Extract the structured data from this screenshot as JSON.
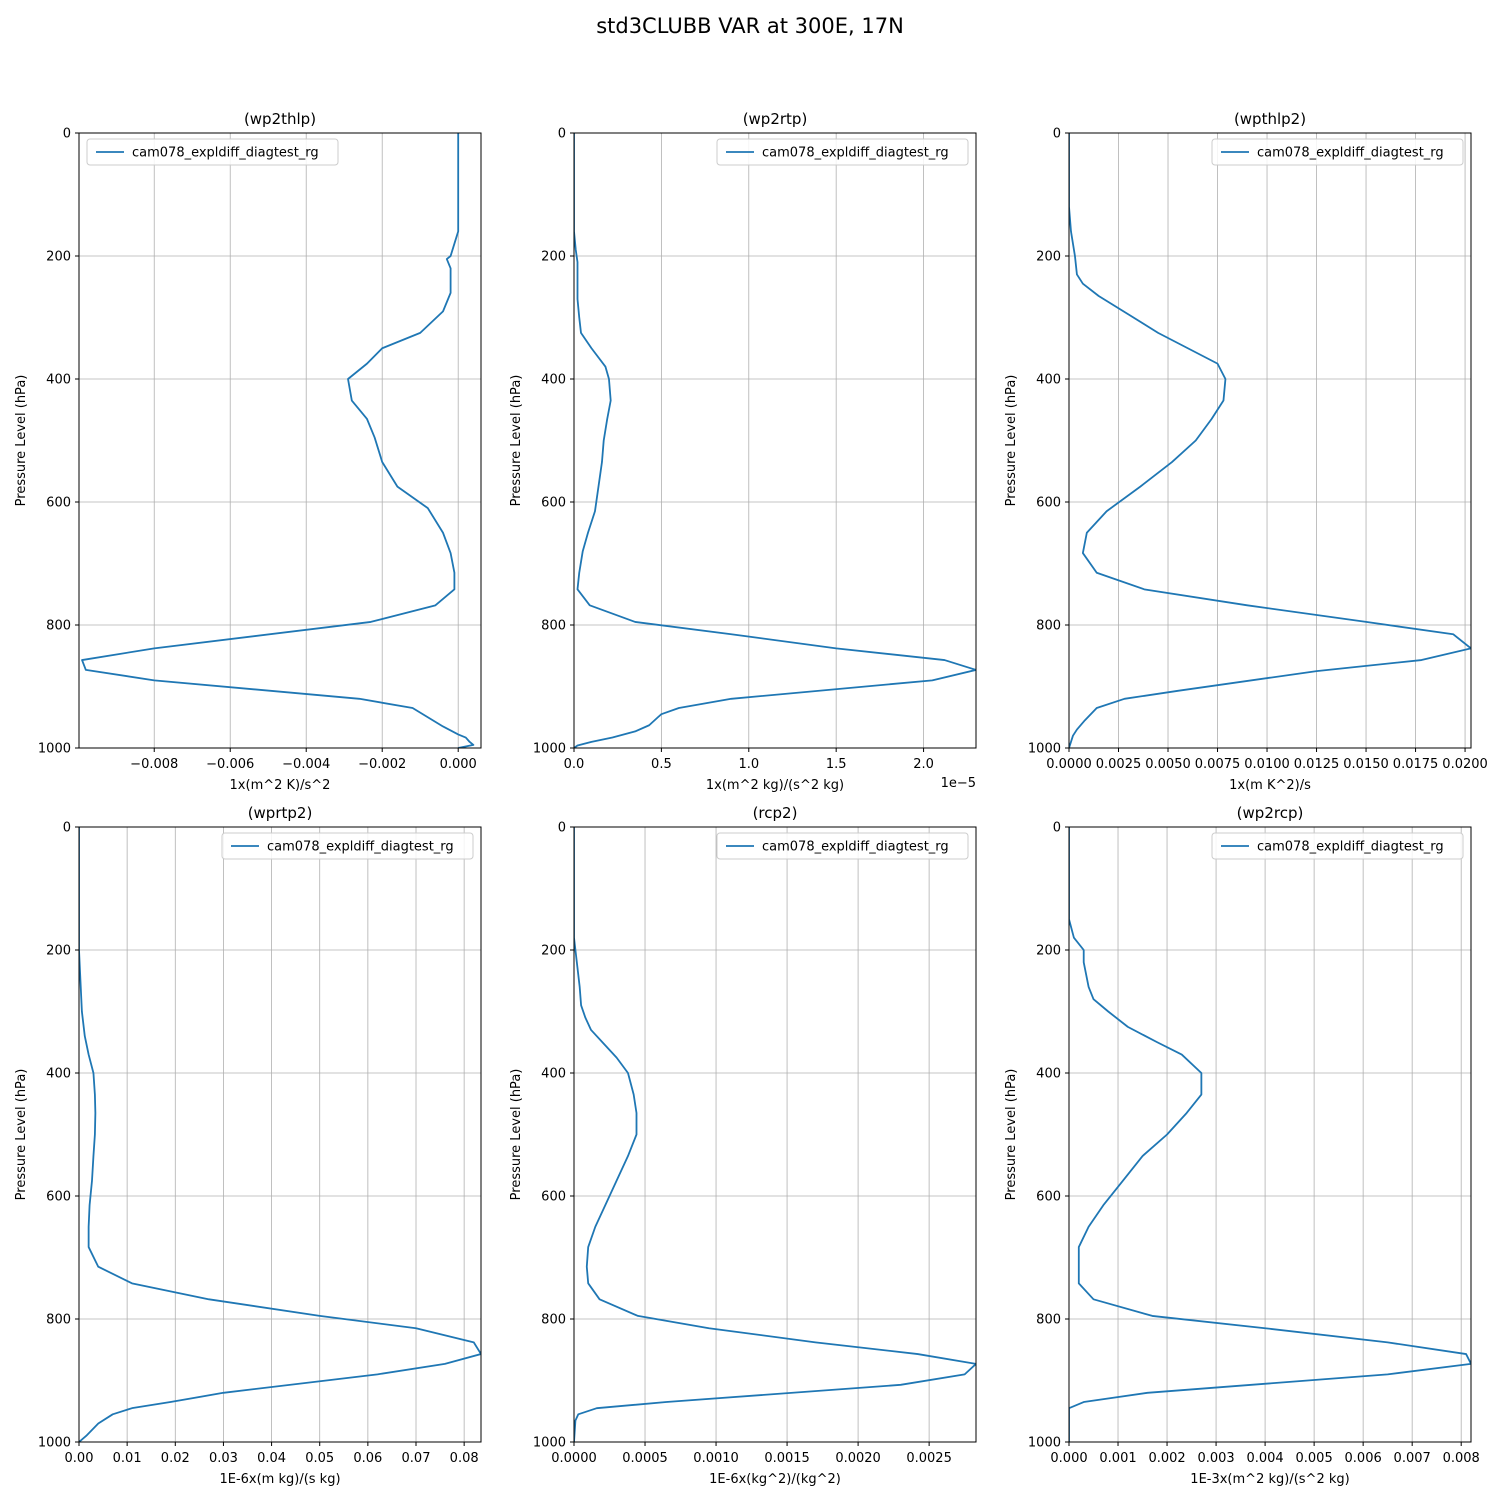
{
  "figure": {
    "title": "std3CLUBB VAR at 300E, 17N",
    "line_color": "#1f77b4",
    "grid_color": "#b0b0b0"
  },
  "chart_data": [
    {
      "type": "line",
      "title": "(wp2thlp)",
      "xlabel": "1x(m^2 K)/s^2",
      "ylabel": "Pressure Level (hPa)",
      "xlim": [
        -0.00998,
        0.0006
      ],
      "ylim": [
        1000,
        0
      ],
      "xticks": [
        -0.008,
        -0.006,
        -0.004,
        -0.002,
        0.0
      ],
      "xtick_labels": [
        "−0.008",
        "−0.006",
        "−0.004",
        "−0.002",
        "0.000"
      ],
      "yticks": [
        0,
        200,
        400,
        600,
        800,
        1000
      ],
      "ytick_labels": [
        "0",
        "200",
        "400",
        "600",
        "800",
        "1000"
      ],
      "offset_label": "",
      "legend": "upper left",
      "series": [
        {
          "name": "cam078_expldiff_diagtest_rg",
          "x": [
            0.0,
            0.0,
            0.0,
            0.0,
            0.0,
            -0.0001,
            -0.0002,
            -0.0003,
            -0.0002,
            -0.0002,
            -0.0004,
            -0.001,
            -0.002,
            -0.0024,
            -0.0029,
            -0.0028,
            -0.0024,
            -0.0022,
            -0.002,
            -0.0016,
            -0.0008,
            -0.0004,
            -0.0002,
            -0.0001,
            -0.0001,
            -0.0006,
            -0.0023,
            -0.008,
            -0.0099,
            -0.0098,
            -0.008,
            -0.0026,
            -0.0012,
            -0.0004,
            0.0,
            0.0002,
            0.0003,
            0.0004,
            0.0
          ],
          "y": [
            0,
            50,
            100,
            135,
            160,
            180,
            200,
            205,
            220,
            260,
            290,
            325,
            350,
            375,
            400,
            435,
            465,
            495,
            535,
            575,
            610,
            650,
            683,
            715,
            742,
            768,
            795,
            838,
            857,
            873,
            890,
            920,
            935,
            965,
            978,
            983,
            990,
            995,
            1000
          ]
        }
      ]
    },
    {
      "type": "line",
      "title": "(wp2rtp)",
      "xlabel": "1x(m^2 kg)/(s^2 kg)",
      "ylabel": "Pressure Level (hPa)",
      "xlim": [
        0,
        2.3
      ],
      "ylim": [
        1000,
        0
      ],
      "xticks": [
        0.0,
        0.5,
        1.0,
        1.5,
        2.0
      ],
      "xtick_labels": [
        "0.0",
        "0.5",
        "1.0",
        "1.5",
        "2.0"
      ],
      "yticks": [
        0,
        200,
        400,
        600,
        800,
        1000
      ],
      "ytick_labels": [
        "0",
        "200",
        "400",
        "600",
        "800",
        "1000"
      ],
      "offset_label": "1e−5",
      "legend": "upper right",
      "series": [
        {
          "name": "cam078_expldiff_diagtest_rg",
          "x": [
            0.0,
            0.0,
            0.0,
            0.01,
            0.02,
            0.02,
            0.02,
            0.03,
            0.04,
            0.1,
            0.18,
            0.2,
            0.21,
            0.19,
            0.17,
            0.16,
            0.14,
            0.12,
            0.08,
            0.05,
            0.03,
            0.02,
            0.09,
            0.35,
            0.9,
            1.5,
            2.12,
            2.3,
            2.05,
            0.9,
            0.6,
            0.5,
            0.48,
            0.43,
            0.35,
            0.22,
            0.1,
            0.02,
            0.0
          ],
          "y": [
            0,
            100,
            160,
            190,
            210,
            230,
            270,
            300,
            325,
            350,
            380,
            400,
            435,
            465,
            500,
            535,
            575,
            615,
            650,
            680,
            715,
            742,
            768,
            795,
            815,
            838,
            857,
            873,
            890,
            920,
            935,
            945,
            950,
            963,
            973,
            983,
            990,
            996,
            1000
          ]
        }
      ]
    },
    {
      "type": "line",
      "title": "(wpthlp2)",
      "xlabel": "1x(m K^2)/s",
      "ylabel": "Pressure Level (hPa)",
      "xlim": [
        0,
        0.0203
      ],
      "ylim": [
        1000,
        0
      ],
      "xticks": [
        0.0,
        0.0025,
        0.005,
        0.0075,
        0.01,
        0.0125,
        0.015,
        0.0175,
        0.02
      ],
      "xtick_labels": [
        "0.0000",
        "0.0025",
        "0.0050",
        "0.0075",
        "0.0100",
        "0.0125",
        "0.0150",
        "0.0175",
        "0.0200"
      ],
      "yticks": [
        0,
        200,
        400,
        600,
        800,
        1000
      ],
      "ytick_labels": [
        "0",
        "200",
        "400",
        "600",
        "800",
        "1000"
      ],
      "offset_label": "",
      "legend": "upper right",
      "series": [
        {
          "name": "cam078_expldiff_diagtest_rg",
          "x": [
            0.0,
            0.0,
            0.0001,
            0.0003,
            0.0004,
            0.0007,
            0.0015,
            0.003,
            0.0045,
            0.006,
            0.0075,
            0.0079,
            0.0078,
            0.0072,
            0.0064,
            0.0052,
            0.0036,
            0.0019,
            0.0009,
            0.0007,
            0.0014,
            0.0038,
            0.009,
            0.015,
            0.0194,
            0.0203,
            0.0178,
            0.0125,
            0.0055,
            0.0028,
            0.0014,
            0.0008,
            0.0004,
            0.0002,
            0.0001,
            0.0
          ],
          "y": [
            0,
            120,
            160,
            200,
            230,
            245,
            265,
            295,
            325,
            350,
            375,
            400,
            435,
            465,
            500,
            535,
            575,
            615,
            650,
            683,
            715,
            742,
            768,
            795,
            815,
            838,
            857,
            875,
            907,
            920,
            935,
            955,
            970,
            980,
            990,
            1000
          ]
        }
      ]
    },
    {
      "type": "line",
      "title": "(wprtp2)",
      "xlabel": "1E-6x(m kg)/(s kg)",
      "ylabel": "Pressure Level (hPa)",
      "xlim": [
        0,
        0.0835
      ],
      "ylim": [
        1000,
        0
      ],
      "xticks": [
        0.0,
        0.01,
        0.02,
        0.03,
        0.04,
        0.05,
        0.06,
        0.07,
        0.08
      ],
      "xtick_labels": [
        "0.00",
        "0.01",
        "0.02",
        "0.03",
        "0.04",
        "0.05",
        "0.06",
        "0.07",
        "0.08"
      ],
      "yticks": [
        0,
        200,
        400,
        600,
        800,
        1000
      ],
      "ytick_labels": [
        "0",
        "200",
        "400",
        "600",
        "800",
        "1000"
      ],
      "offset_label": "",
      "legend": "upper right",
      "series": [
        {
          "name": "cam078_expldiff_diagtest_rg",
          "x": [
            0.0,
            0.0,
            0.0003,
            0.0006,
            0.0012,
            0.002,
            0.003,
            0.0033,
            0.0034,
            0.0033,
            0.003,
            0.0027,
            0.0022,
            0.002,
            0.002,
            0.004,
            0.011,
            0.027,
            0.05,
            0.07,
            0.082,
            0.0835,
            0.076,
            0.062,
            0.03,
            0.019,
            0.011,
            0.007,
            0.004,
            0.0015,
            0.0
          ],
          "y": [
            0,
            200,
            250,
            300,
            340,
            370,
            400,
            435,
            465,
            500,
            535,
            575,
            615,
            650,
            683,
            715,
            742,
            768,
            795,
            815,
            838,
            857,
            873,
            890,
            920,
            935,
            945,
            955,
            970,
            990,
            1000
          ]
        }
      ]
    },
    {
      "type": "line",
      "title": "(rcp2)",
      "xlabel": "1E-6x(kg^2)/(kg^2)",
      "ylabel": "Pressure Level (hPa)",
      "xlim": [
        0,
        0.00283
      ],
      "ylim": [
        1000,
        0
      ],
      "xticks": [
        0.0,
        0.0005,
        0.001,
        0.0015,
        0.002,
        0.0025
      ],
      "xtick_labels": [
        "0.0000",
        "0.0005",
        "0.0010",
        "0.0015",
        "0.0020",
        "0.0025"
      ],
      "yticks": [
        0,
        200,
        400,
        600,
        800,
        1000
      ],
      "ytick_labels": [
        "0",
        "200",
        "400",
        "600",
        "800",
        "1000"
      ],
      "offset_label": "",
      "legend": "upper right",
      "series": [
        {
          "name": "cam078_expldiff_diagtest_rg",
          "x": [
            0.0,
            0.0,
            2e-05,
            4e-05,
            5e-05,
            8e-05,
            0.00012,
            0.0002,
            0.0003,
            0.00038,
            0.00042,
            0.00044,
            0.00044,
            0.00038,
            0.0003,
            0.00022,
            0.00015,
            0.0001,
            9e-05,
            0.0001,
            0.00018,
            0.00045,
            0.00095,
            0.0017,
            0.00242,
            0.00283,
            0.00275,
            0.0023,
            0.00065,
            0.00016,
            3e-05,
            1e-05,
            0.0
          ],
          "y": [
            0,
            180,
            220,
            260,
            290,
            310,
            330,
            350,
            375,
            400,
            435,
            465,
            500,
            535,
            575,
            615,
            650,
            683,
            715,
            742,
            768,
            795,
            815,
            838,
            857,
            873,
            890,
            907,
            935,
            945,
            955,
            965,
            1000
          ]
        }
      ]
    },
    {
      "type": "line",
      "title": "(wp2rcp)",
      "xlabel": "1E-3x(m^2 kg)/(s^2 kg)",
      "ylabel": "Pressure Level (hPa)",
      "xlim": [
        0,
        0.0082
      ],
      "ylim": [
        1000,
        0
      ],
      "xticks": [
        0.0,
        0.001,
        0.002,
        0.003,
        0.004,
        0.005,
        0.006,
        0.007,
        0.008
      ],
      "xtick_labels": [
        "0.000",
        "0.001",
        "0.002",
        "0.003",
        "0.004",
        "0.005",
        "0.006",
        "0.007",
        "0.008"
      ],
      "yticks": [
        0,
        200,
        400,
        600,
        800,
        1000
      ],
      "ytick_labels": [
        "0",
        "200",
        "400",
        "600",
        "800",
        "1000"
      ],
      "offset_label": "",
      "legend": "upper right",
      "series": [
        {
          "name": "cam078_expldiff_diagtest_rg",
          "x": [
            0.0,
            0.0,
            0.0001,
            0.0003,
            0.0003,
            0.0004,
            0.0005,
            0.0008,
            0.0012,
            0.0018,
            0.0023,
            0.0027,
            0.0027,
            0.0024,
            0.002,
            0.0015,
            0.0011,
            0.0007,
            0.0004,
            0.0002,
            0.0002,
            0.0002,
            0.0005,
            0.0017,
            0.004,
            0.0065,
            0.0081,
            0.0082,
            0.0065,
            0.0016,
            0.0003,
            0.0,
            0.0
          ],
          "y": [
            0,
            150,
            180,
            200,
            220,
            260,
            280,
            300,
            325,
            350,
            370,
            400,
            435,
            465,
            500,
            535,
            575,
            615,
            650,
            683,
            715,
            742,
            768,
            795,
            815,
            838,
            857,
            873,
            890,
            920,
            935,
            945,
            1000
          ]
        }
      ]
    }
  ]
}
